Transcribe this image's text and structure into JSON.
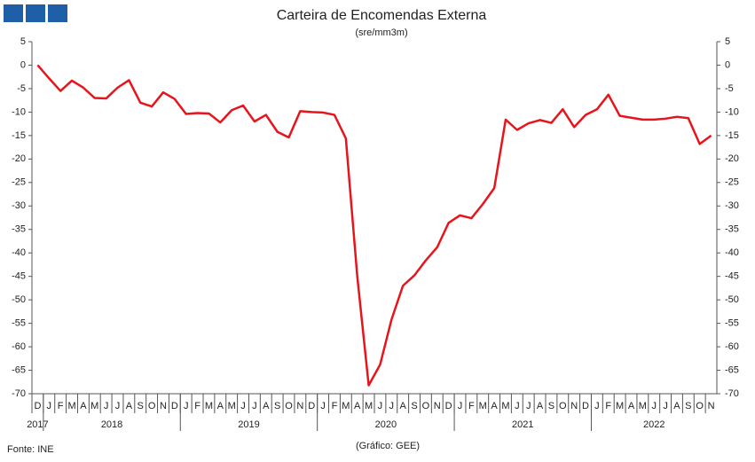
{
  "chart_data": {
    "type": "line",
    "title": "Carteira de Encomendas Externa",
    "subtitle": "(sre/mm3m)",
    "source": "Fonte: INE",
    "credit": "(Gráfico: GEE)",
    "categories": [
      "D",
      "J",
      "F",
      "M",
      "A",
      "M",
      "J",
      "J",
      "A",
      "S",
      "O",
      "N",
      "D",
      "J",
      "F",
      "M",
      "A",
      "M",
      "J",
      "J",
      "A",
      "S",
      "O",
      "N",
      "D",
      "J",
      "F",
      "M",
      "A",
      "M",
      "J",
      "J",
      "A",
      "S",
      "O",
      "N",
      "D",
      "J",
      "F",
      "M",
      "A",
      "M",
      "J",
      "J",
      "A",
      "S",
      "O",
      "N",
      "D",
      "J",
      "F",
      "M",
      "A",
      "M",
      "J",
      "J",
      "A",
      "S",
      "O",
      "N"
    ],
    "years": [
      "2017",
      "2018",
      "2019",
      "2020",
      "2021",
      "2022"
    ],
    "series": [
      {
        "name": "Carteira de Encomendas Externa",
        "color": "#e8141c",
        "values": [
          0,
          -2.8,
          -5.5,
          -3.3,
          -4.8,
          -7.0,
          -7.1,
          -4.8,
          -3.2,
          -8.0,
          -8.8,
          -5.8,
          -7.2,
          -10.4,
          -10.2,
          -10.3,
          -12.2,
          -9.6,
          -8.6,
          -12.0,
          -10.6,
          -14.2,
          -15.4,
          -9.8,
          -10.0,
          -10.1,
          -10.6,
          -15.6,
          -45,
          -68.2,
          -63.8,
          -54.2,
          -47.0,
          -44.8,
          -41.6,
          -38.8,
          -33.6,
          -32.0,
          -32.6,
          -29.6,
          -26.2,
          -11.6,
          -13.8,
          -12.4,
          -11.7,
          -12.3,
          -9.4,
          -13.2,
          -10.6,
          -9.4,
          -6.3,
          -10.8,
          -11.2,
          -11.6,
          -11.6,
          -11.4,
          -11.0,
          -11.3,
          -16.8,
          -15.0
        ]
      }
    ],
    "ylim": [
      -70,
      5
    ],
    "yticks": [
      5,
      0,
      -5,
      -10,
      -15,
      -20,
      -25,
      -30,
      -35,
      -40,
      -45,
      -50,
      -55,
      -60,
      -65,
      -70
    ],
    "grid": false
  }
}
